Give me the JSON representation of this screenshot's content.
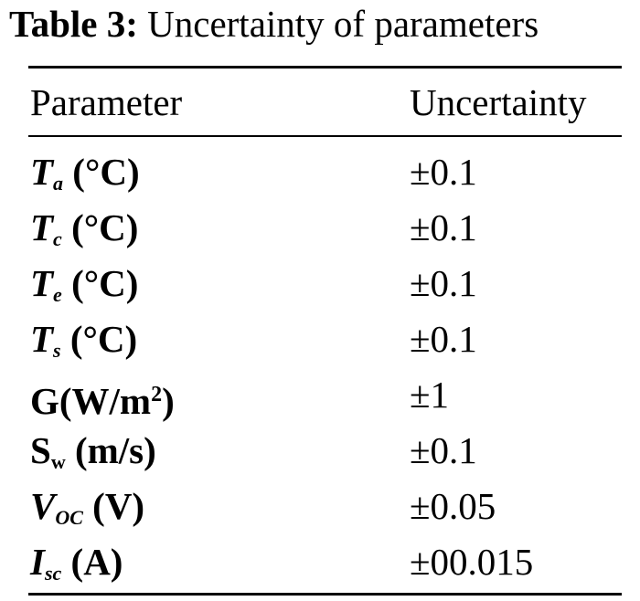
{
  "caption": {
    "label": "Table 3:",
    "text": "Uncertainty of parameters"
  },
  "table": {
    "headers": {
      "parameter": "Parameter",
      "uncertainty": "Uncertainty"
    },
    "rows": [
      {
        "symbol": "T",
        "subscript": "a",
        "unit": "(°C)",
        "uncertainty": "±0.1"
      },
      {
        "symbol": "T",
        "subscript": "c",
        "unit": "(°C)",
        "uncertainty": "±0.1"
      },
      {
        "symbol": "T",
        "subscript": "e",
        "unit": "(°C)",
        "uncertainty": "±0.1"
      },
      {
        "symbol": "T",
        "subscript": "s",
        "unit": "(°C)",
        "uncertainty": "±0.1"
      },
      {
        "symbol": "G(W/m",
        "superscript": "2",
        "close": ")",
        "uncertainty": "±1"
      },
      {
        "symbol": "S",
        "subscript": "w",
        "unit": "(m/s)",
        "uncertainty": "±0.1"
      },
      {
        "symbol": "V",
        "subscript": "OC",
        "unit": "(V)",
        "uncertainty": "±0.05"
      },
      {
        "symbol": "I",
        "subscript": "sc",
        "unit": "(A)",
        "uncertainty": "±00.015"
      }
    ]
  }
}
